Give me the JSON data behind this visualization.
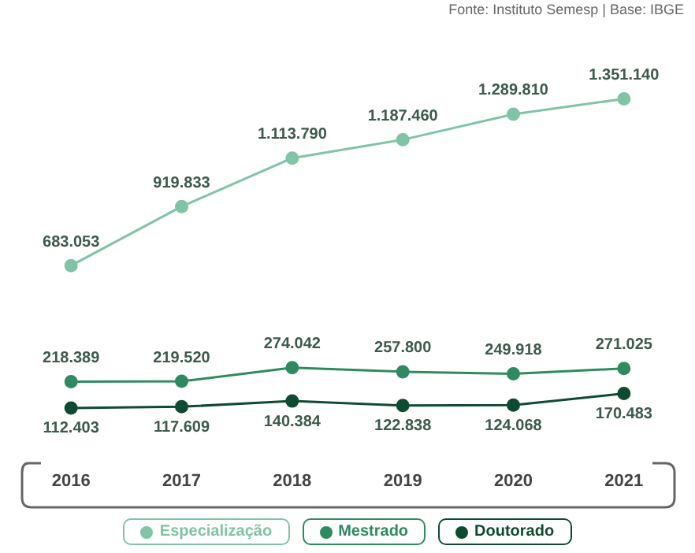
{
  "chart_data": {
    "type": "line",
    "annotations": [
      "Fonte: Instituto Semesp | Base: IBGE"
    ],
    "categories": [
      "2016",
      "2017",
      "2018",
      "2019",
      "2020",
      "2021"
    ],
    "series": [
      {
        "name": "Especialização",
        "color": "#80c3a6",
        "values": [
          683053,
          919833,
          1113790,
          1187460,
          1289810,
          1351140
        ],
        "value_labels": [
          "683.053",
          "919.833",
          "1.113.790",
          "1.187.460",
          "1.289.810",
          "1.351.140"
        ]
      },
      {
        "name": "Mestrado",
        "color": "#2f8a61",
        "values": [
          218389,
          219520,
          274042,
          257800,
          249918,
          271025
        ],
        "value_labels": [
          "218.389",
          "219.520",
          "274.042",
          "257.800",
          "249.918",
          "271.025"
        ]
      },
      {
        "name": "Doutorado",
        "color": "#0f4a32",
        "values": [
          112403,
          117609,
          140384,
          122838,
          124068,
          170483
        ],
        "value_labels": [
          "112.403",
          "117.609",
          "140.384",
          "122.838",
          "124.068",
          "170.483"
        ]
      }
    ],
    "marker": "circle",
    "line_style": "solid",
    "grid": false,
    "legend": "bottom"
  }
}
